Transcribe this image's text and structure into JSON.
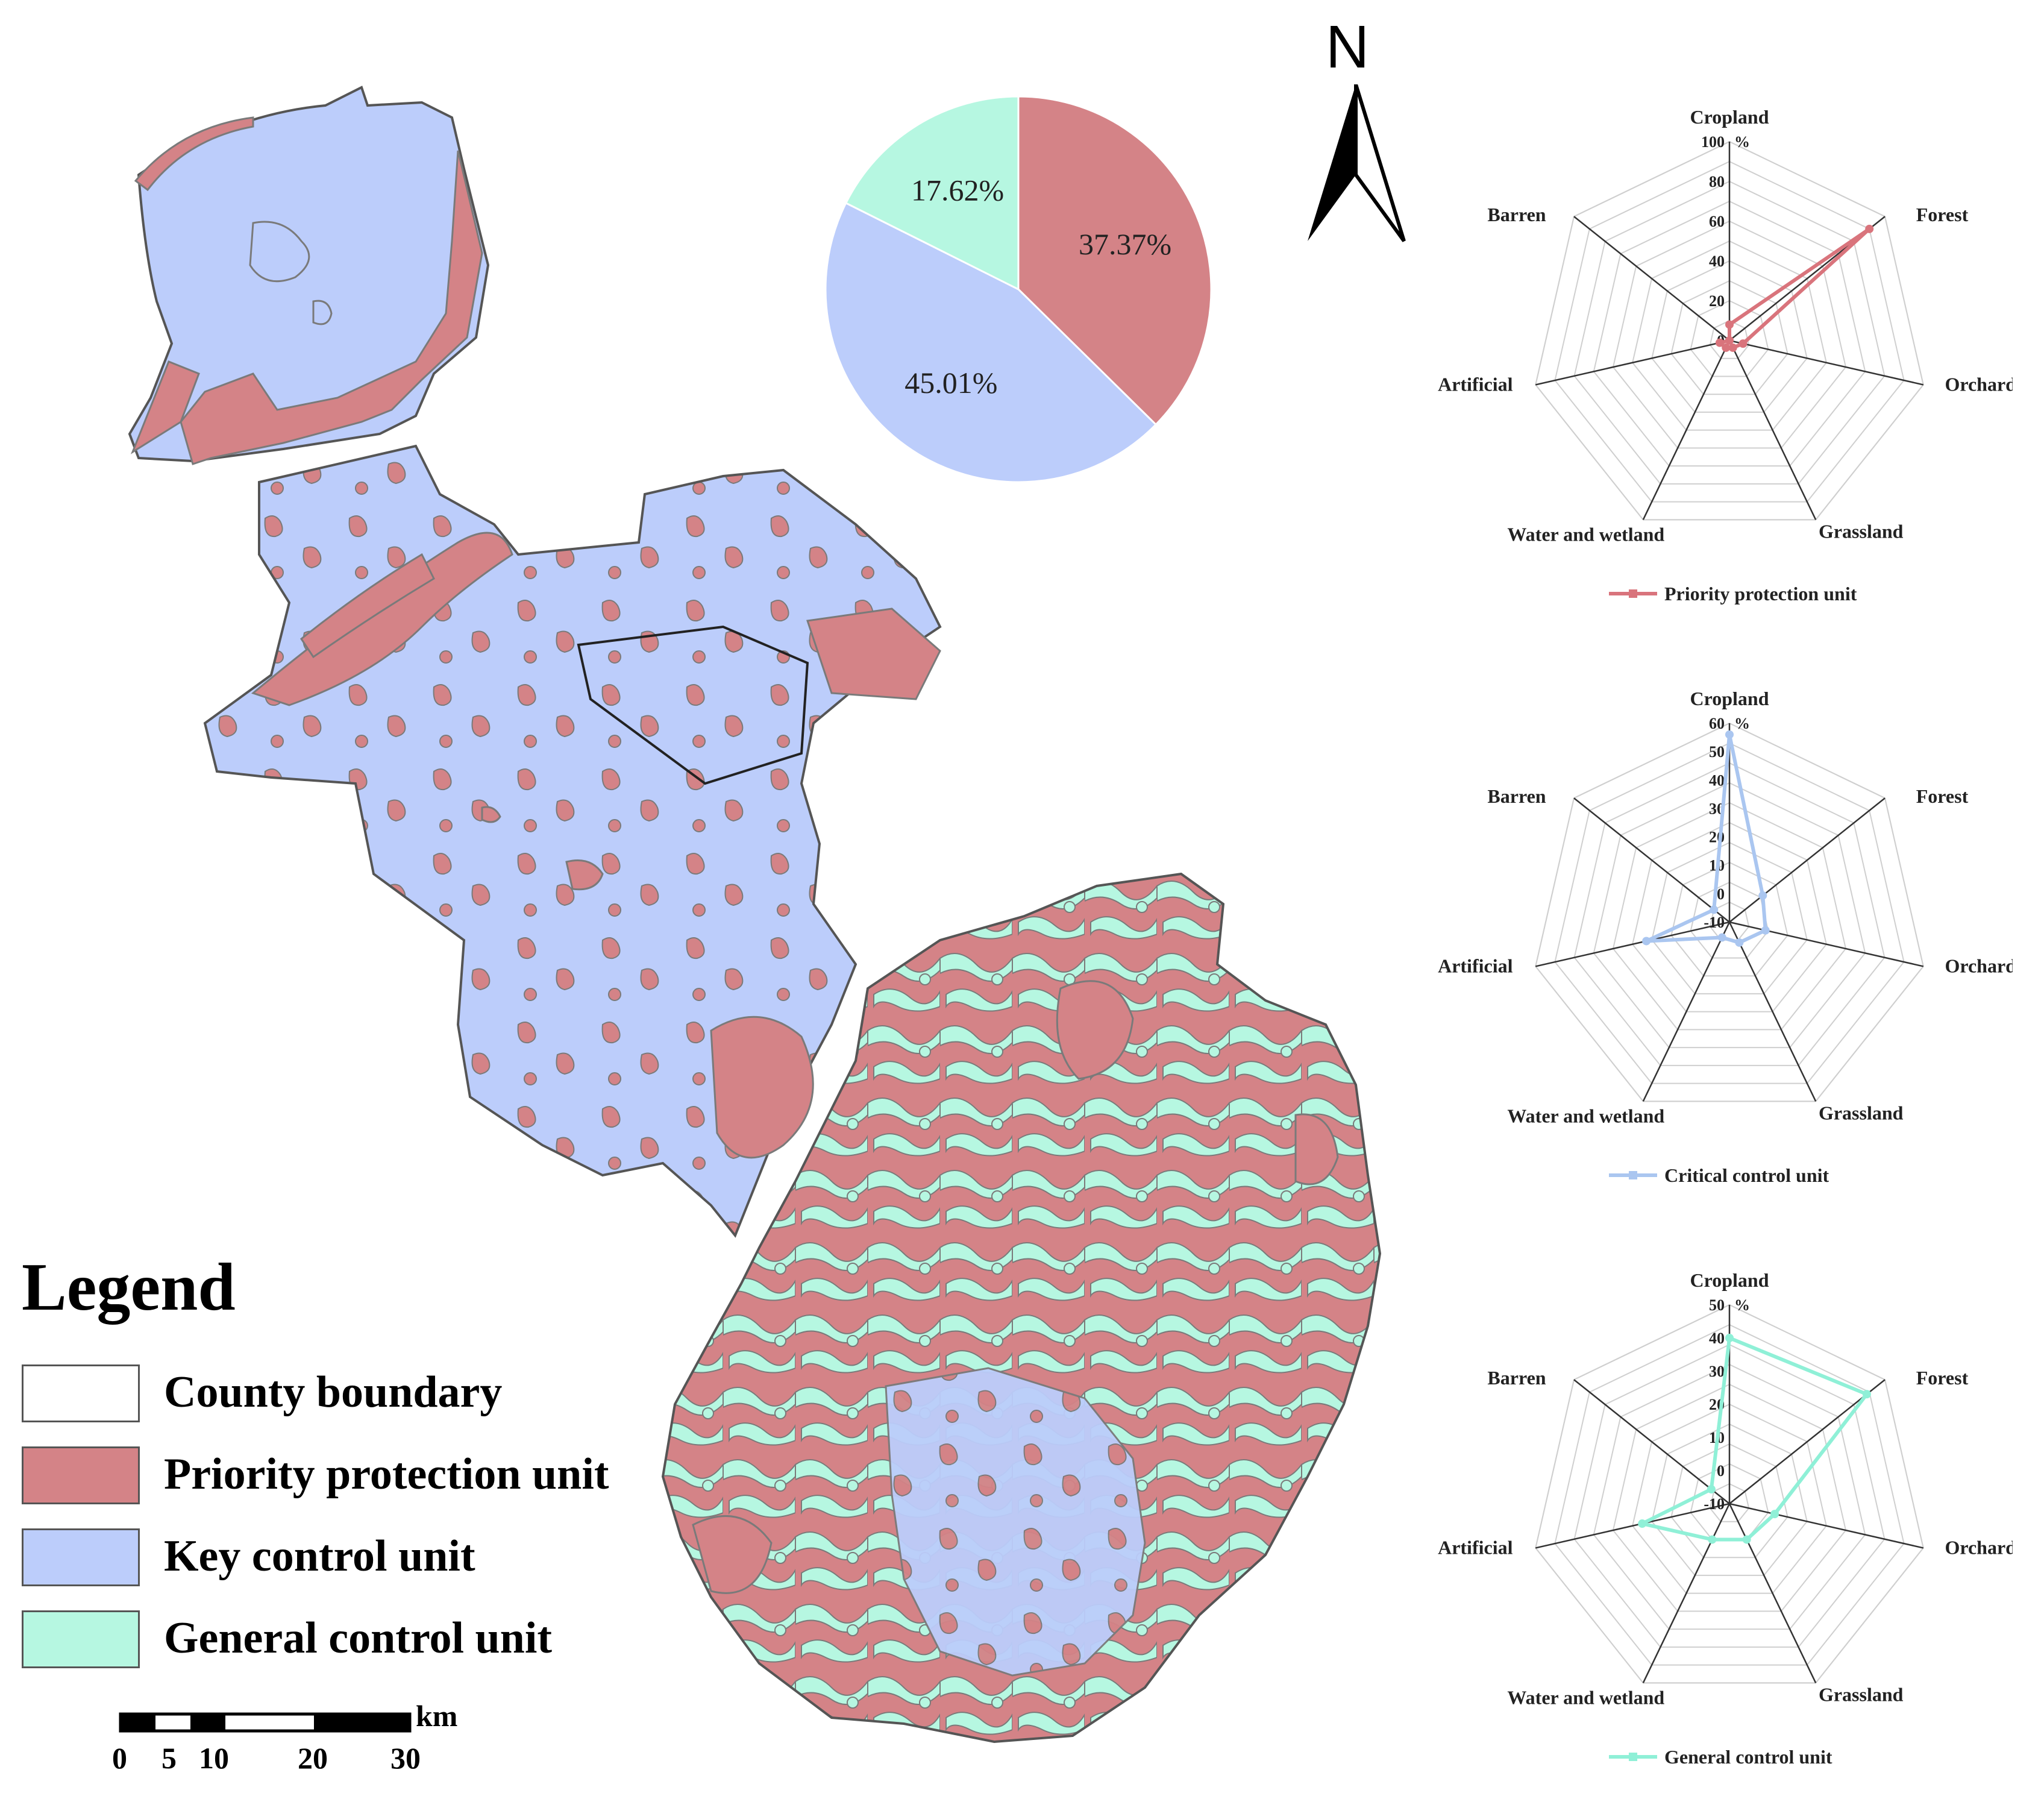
{
  "north_arrow": {
    "label": "N"
  },
  "legend": {
    "title": "Legend",
    "items": [
      {
        "label": "County boundary",
        "color": "#ffffff"
      },
      {
        "label": "Priority protection unit",
        "color": "#d48387"
      },
      {
        "label": "Key control unit",
        "color": "#bccdfb"
      },
      {
        "label": "General control unit",
        "color": "#b6f7e1"
      }
    ]
  },
  "scale_bar": {
    "unit": "km",
    "ticks": [
      "0",
      "5",
      "10",
      "20",
      "30"
    ]
  },
  "map_colors": {
    "priority": "#d48387",
    "key": "#bccdfb",
    "general": "#b6f7e1",
    "outline": "#7a7a7a"
  },
  "chart_data": [
    {
      "type": "pie",
      "labels": [
        "Priority protection unit",
        "Key control unit",
        "General control unit"
      ],
      "values": [
        37.37,
        45.01,
        17.62
      ],
      "slice_labels": [
        "37.37%",
        "45.01%",
        "17.62%"
      ],
      "colors": [
        "#d48387",
        "#bccdfb",
        "#b6f7e1"
      ]
    },
    {
      "type": "radar",
      "series_name": "Priority protection unit",
      "color": "#d9747c",
      "axes": [
        "Cropland",
        "Forest",
        "Orchard",
        "Grassland",
        "Water and wetland",
        "Artificial",
        "Barren"
      ],
      "values": [
        8,
        90,
        7,
        4,
        4,
        5,
        0
      ],
      "range": [
        0,
        100
      ],
      "ticks": [
        "0",
        "20",
        "40",
        "60",
        "80",
        "100"
      ],
      "unit": "%"
    },
    {
      "type": "radar",
      "series_name": "Critical control unit",
      "color": "#aac6f0",
      "axes": [
        "Cropland",
        "Forest",
        "Orchard",
        "Grassland",
        "Water and wetland",
        "Artificial",
        "Barren"
      ],
      "values": [
        56,
        5,
        3,
        -2,
        -4,
        20,
        -3
      ],
      "range": [
        -10,
        60
      ],
      "ticks": [
        "-10",
        "0",
        "10",
        "20",
        "30",
        "40",
        "50",
        "60"
      ],
      "unit": "%"
    },
    {
      "type": "radar",
      "series_name": "General control unit",
      "color": "#8ff0d7",
      "axes": [
        "Cropland",
        "Forest",
        "Orchard",
        "Grassland",
        "Water and wetland",
        "Artificial",
        "Barren"
      ],
      "values": [
        40,
        43,
        4,
        2,
        2,
        17,
        -3
      ],
      "range": [
        -10,
        50
      ],
      "ticks": [
        "-10",
        "0",
        "10",
        "20",
        "30",
        "40",
        "50"
      ],
      "unit": "%"
    }
  ]
}
